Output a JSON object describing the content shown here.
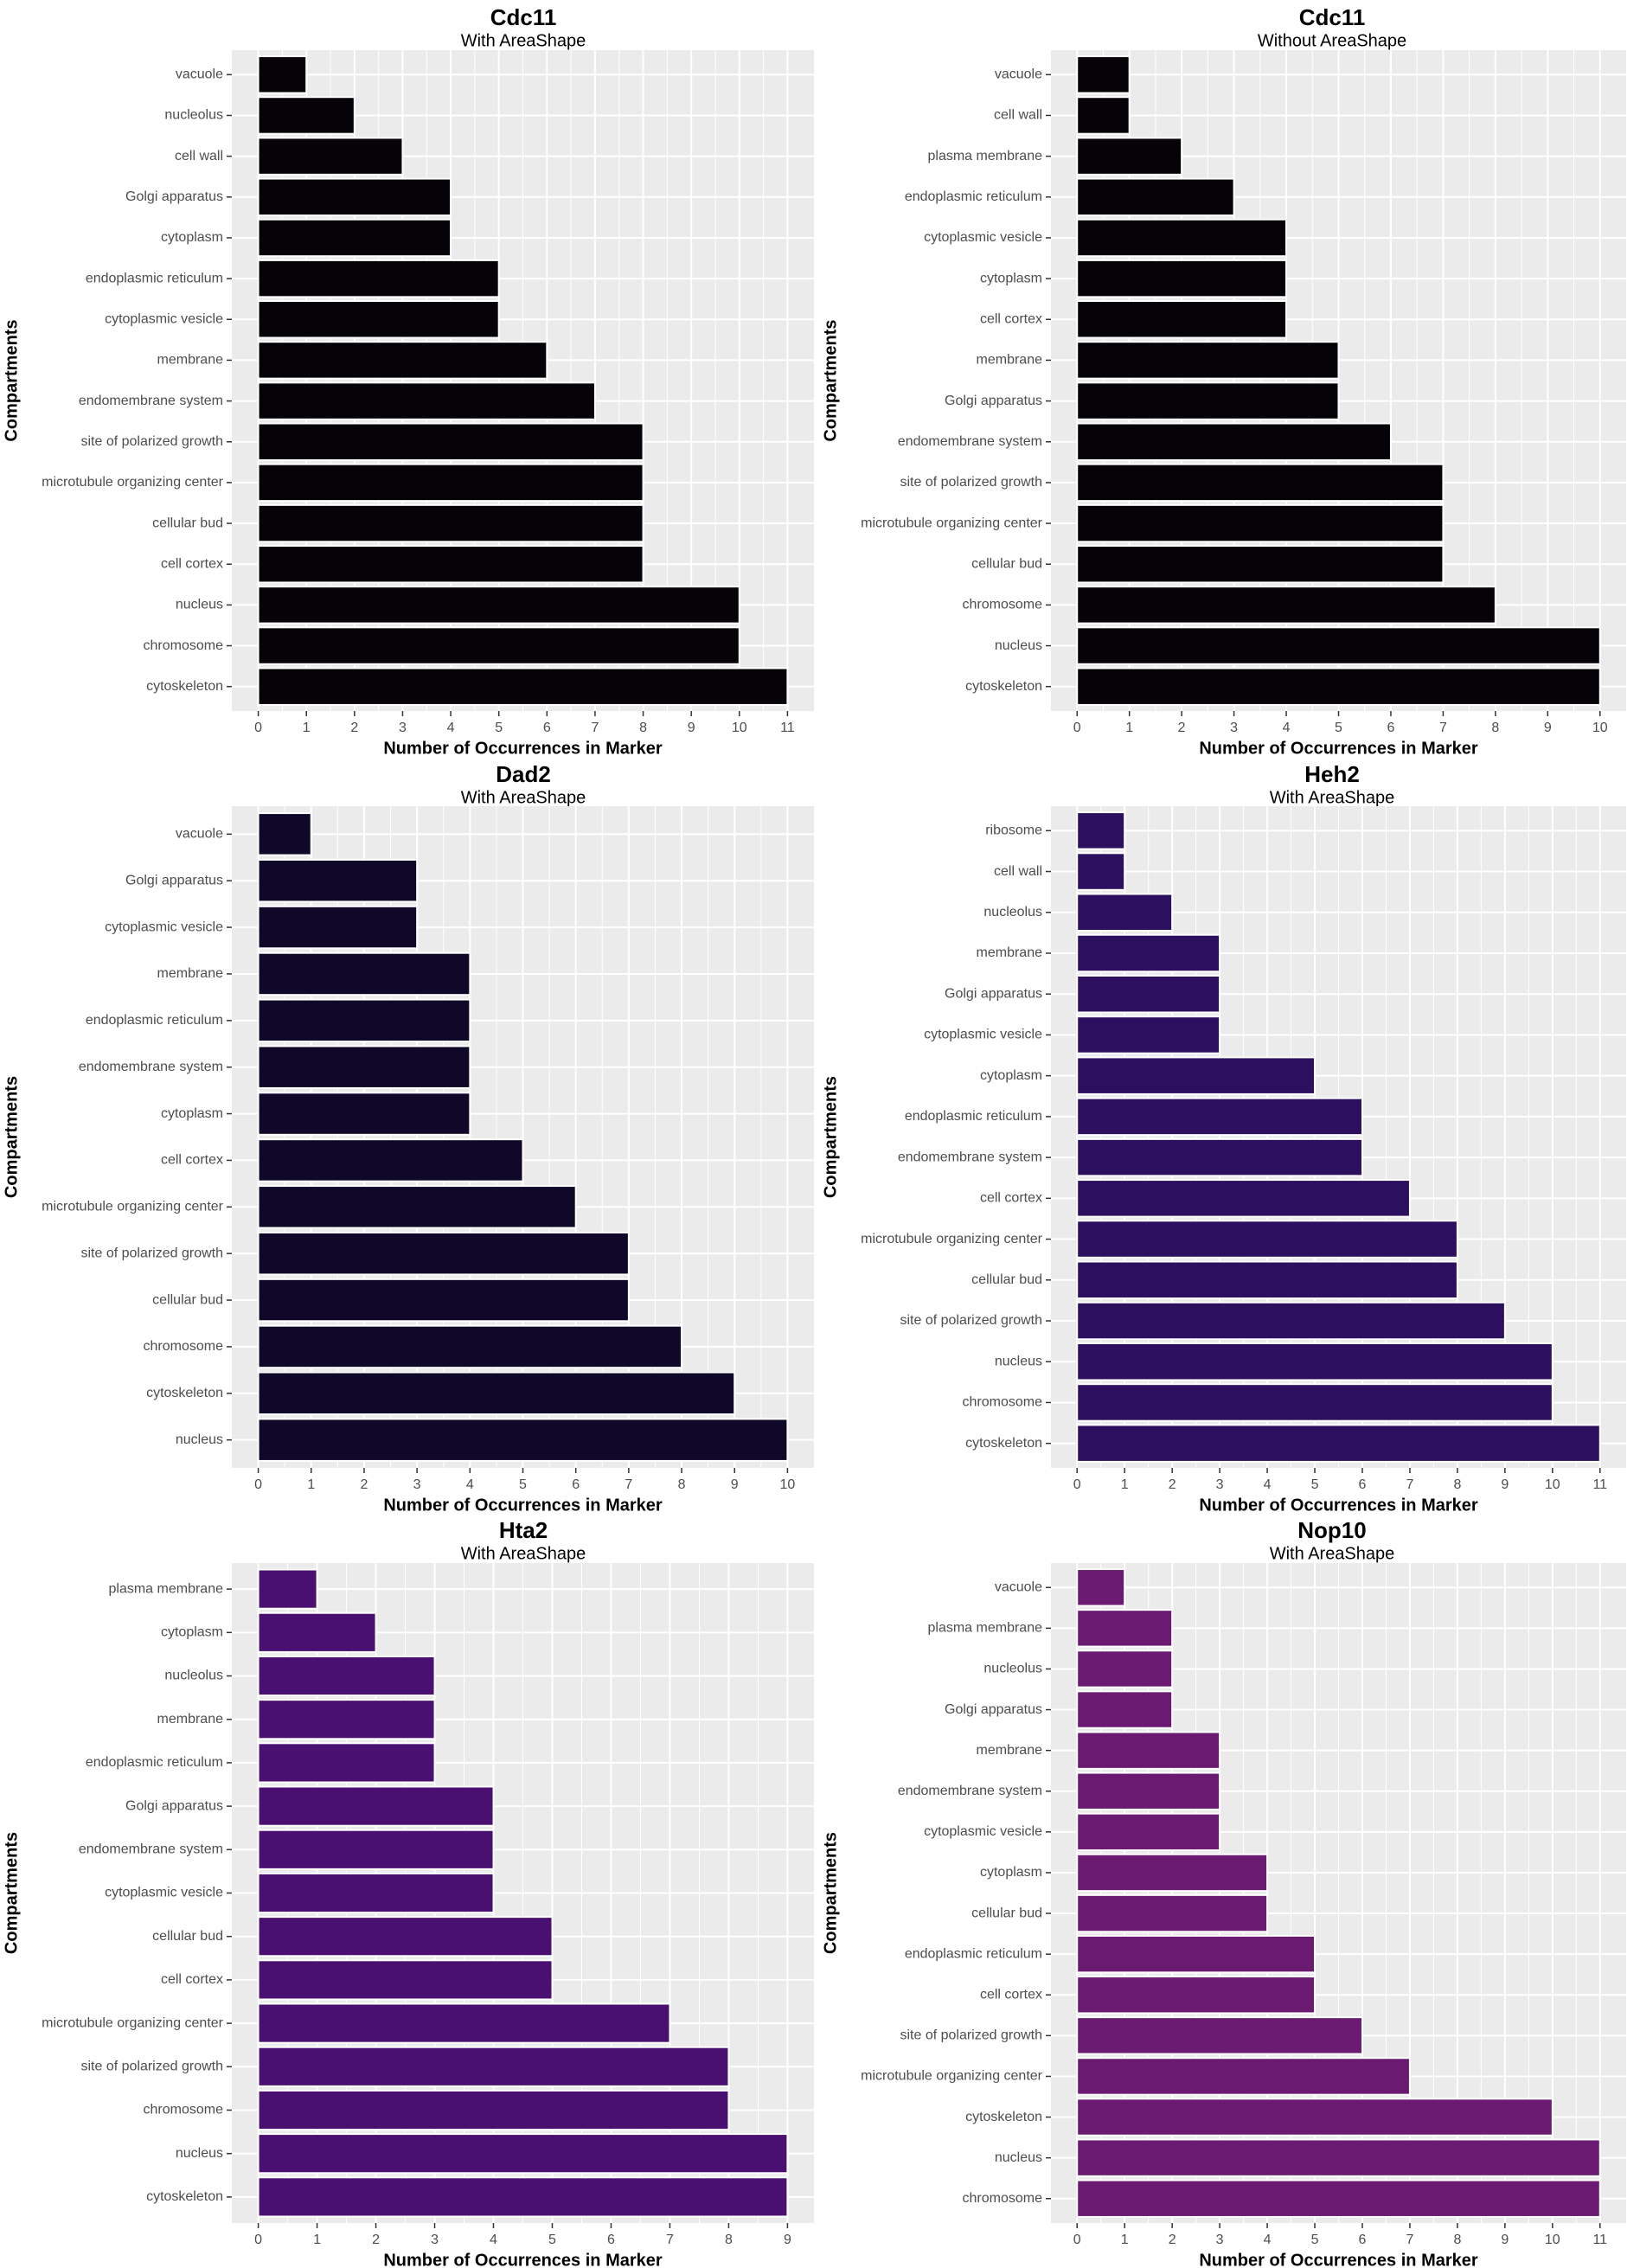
{
  "chart_data": [
    {
      "type": "bar",
      "orientation": "horizontal",
      "title": "Cdc11",
      "subtitle": "With AreaShape",
      "xlabel": "Number of Occurrences in Marker",
      "ylabel": "Compartments",
      "xlim": [
        0,
        11
      ],
      "x_ticks": [
        0,
        1,
        2,
        3,
        4,
        5,
        6,
        7,
        8,
        9,
        10,
        11
      ],
      "bar_color": "#050307",
      "categories": [
        "vacuole",
        "nucleolus",
        "cell wall",
        "Golgi apparatus",
        "cytoplasm",
        "endoplasmic reticulum",
        "cytoplasmic vesicle",
        "membrane",
        "endomembrane system",
        "site of polarized growth",
        "microtubule organizing center",
        "cellular bud",
        "cell cortex",
        "nucleus",
        "chromosome",
        "cytoskeleton"
      ],
      "values": [
        1,
        2,
        3,
        4,
        4,
        5,
        5,
        6,
        7,
        8,
        8,
        8,
        8,
        10,
        10,
        11
      ]
    },
    {
      "type": "bar",
      "orientation": "horizontal",
      "title": "Cdc11",
      "subtitle": "Without AreaShape",
      "xlabel": "Number of Occurrences in Marker",
      "ylabel": "Compartments",
      "xlim": [
        0,
        10
      ],
      "x_ticks": [
        0,
        1,
        2,
        3,
        4,
        5,
        6,
        7,
        8,
        9,
        10
      ],
      "bar_color": "#050307",
      "categories": [
        "vacuole",
        "cell wall",
        "plasma membrane",
        "endoplasmic reticulum",
        "cytoplasmic vesicle",
        "cytoplasm",
        "cell cortex",
        "membrane",
        "Golgi apparatus",
        "endomembrane system",
        "site of polarized growth",
        "microtubule organizing center",
        "cellular bud",
        "chromosome",
        "nucleus",
        "cytoskeleton"
      ],
      "values": [
        1,
        1,
        2,
        3,
        4,
        4,
        4,
        5,
        5,
        6,
        7,
        7,
        7,
        8,
        10,
        10
      ]
    },
    {
      "type": "bar",
      "orientation": "horizontal",
      "title": "Dad2",
      "subtitle": "With AreaShape",
      "xlabel": "Number of Occurrences in Marker",
      "ylabel": "Compartments",
      "xlim": [
        0,
        10
      ],
      "x_ticks": [
        0,
        1,
        2,
        3,
        4,
        5,
        6,
        7,
        8,
        9,
        10
      ],
      "bar_color": "#0f0829",
      "categories": [
        "vacuole",
        "Golgi apparatus",
        "cytoplasmic vesicle",
        "membrane",
        "endoplasmic reticulum",
        "endomembrane system",
        "cytoplasm",
        "cell cortex",
        "microtubule organizing center",
        "site of polarized growth",
        "cellular bud",
        "chromosome",
        "cytoskeleton",
        "nucleus"
      ],
      "values": [
        1,
        3,
        3,
        4,
        4,
        4,
        4,
        5,
        6,
        7,
        7,
        8,
        9,
        10
      ]
    },
    {
      "type": "bar",
      "orientation": "horizontal",
      "title": "Heh2",
      "subtitle": "With AreaShape",
      "xlabel": "Number of Occurrences in Marker",
      "ylabel": "Compartments",
      "xlim": [
        0,
        11
      ],
      "x_ticks": [
        0,
        1,
        2,
        3,
        4,
        5,
        6,
        7,
        8,
        9,
        10,
        11
      ],
      "bar_color": "#2c0f5e",
      "categories": [
        "ribosome",
        "cell wall",
        "nucleolus",
        "membrane",
        "Golgi apparatus",
        "cytoplasmic vesicle",
        "cytoplasm",
        "endoplasmic reticulum",
        "endomembrane system",
        "cell cortex",
        "microtubule organizing center",
        "cellular bud",
        "site of polarized growth",
        "nucleus",
        "chromosome",
        "cytoskeleton"
      ],
      "values": [
        1,
        1,
        2,
        3,
        3,
        3,
        5,
        6,
        6,
        7,
        8,
        8,
        9,
        10,
        10,
        11
      ]
    },
    {
      "type": "bar",
      "orientation": "horizontal",
      "title": "Hta2",
      "subtitle": "With AreaShape",
      "xlabel": "Number of Occurrences in Marker",
      "ylabel": "Compartments",
      "xlim": [
        0,
        9
      ],
      "x_ticks": [
        0,
        1,
        2,
        3,
        4,
        5,
        6,
        7,
        8,
        9
      ],
      "bar_color": "#4a1071",
      "categories": [
        "plasma membrane",
        "cytoplasm",
        "nucleolus",
        "membrane",
        "endoplasmic reticulum",
        "Golgi apparatus",
        "endomembrane system",
        "cytoplasmic vesicle",
        "cellular bud",
        "cell cortex",
        "microtubule organizing center",
        "site of polarized growth",
        "chromosome",
        "nucleus",
        "cytoskeleton"
      ],
      "values": [
        1,
        2,
        3,
        3,
        3,
        4,
        4,
        4,
        5,
        5,
        7,
        8,
        8,
        9,
        9
      ]
    },
    {
      "type": "bar",
      "orientation": "horizontal",
      "title": "Nop10",
      "subtitle": "With AreaShape",
      "xlabel": "Number of Occurrences in Marker",
      "ylabel": "Compartments",
      "xlim": [
        0,
        11
      ],
      "x_ticks": [
        0,
        1,
        2,
        3,
        4,
        5,
        6,
        7,
        8,
        9,
        10,
        11
      ],
      "bar_color": "#6b1a72",
      "categories": [
        "vacuole",
        "plasma membrane",
        "nucleolus",
        "Golgi apparatus",
        "membrane",
        "endomembrane system",
        "cytoplasmic vesicle",
        "cytoplasm",
        "cellular bud",
        "endoplasmic reticulum",
        "cell cortex",
        "site of polarized growth",
        "microtubule organizing center",
        "cytoskeleton",
        "nucleus",
        "chromosome"
      ],
      "values": [
        1,
        2,
        2,
        2,
        3,
        3,
        3,
        4,
        4,
        5,
        5,
        6,
        7,
        10,
        11,
        11
      ]
    }
  ]
}
